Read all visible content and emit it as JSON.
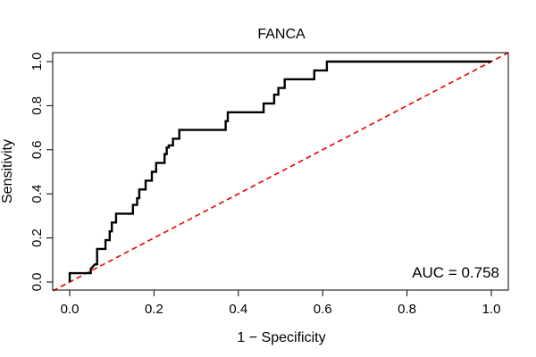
{
  "chart_data": {
    "type": "line",
    "title": "FANCA",
    "xlabel": "1 − Specificity",
    "ylabel": "Sensitivity",
    "xlim": [
      0,
      1
    ],
    "ylim": [
      0,
      1
    ],
    "xticks": [
      "0.0",
      "0.2",
      "0.4",
      "0.6",
      "0.8",
      "1.0"
    ],
    "yticks": [
      "0.0",
      "0.2",
      "0.4",
      "0.6",
      "0.8",
      "1.0"
    ],
    "annotation": "AUC = 0.758",
    "series": [
      {
        "name": "ROC curve",
        "color": "#000000",
        "style": "solid",
        "x": [
          0,
          0,
          0.05,
          0.05,
          0.06,
          0.065,
          0.065,
          0.085,
          0.085,
          0.095,
          0.095,
          0.1,
          0.1,
          0.11,
          0.11,
          0.15,
          0.15,
          0.16,
          0.16,
          0.165,
          0.165,
          0.18,
          0.18,
          0.195,
          0.195,
          0.2,
          0.2,
          0.205,
          0.205,
          0.225,
          0.225,
          0.23,
          0.23,
          0.235,
          0.235,
          0.245,
          0.245,
          0.26,
          0.26,
          0.275,
          0.275,
          0.37,
          0.37,
          0.375,
          0.375,
          0.46,
          0.46,
          0.485,
          0.485,
          0.495,
          0.495,
          0.51,
          0.51,
          0.515,
          0.515,
          0.58,
          0.58,
          0.61,
          0.61,
          1.0
        ],
        "y": [
          0,
          0.04,
          0.04,
          0.06,
          0.08,
          0.08,
          0.15,
          0.15,
          0.19,
          0.19,
          0.23,
          0.23,
          0.27,
          0.27,
          0.31,
          0.31,
          0.35,
          0.35,
          0.38,
          0.38,
          0.42,
          0.42,
          0.46,
          0.46,
          0.5,
          0.5,
          0.5,
          0.5,
          0.54,
          0.54,
          0.58,
          0.58,
          0.61,
          0.61,
          0.62,
          0.62,
          0.65,
          0.65,
          0.69,
          0.69,
          0.69,
          0.69,
          0.73,
          0.73,
          0.77,
          0.77,
          0.81,
          0.81,
          0.85,
          0.85,
          0.88,
          0.88,
          0.92,
          0.92,
          0.92,
          0.92,
          0.96,
          0.96,
          1.0,
          1.0
        ]
      },
      {
        "name": "Chance line",
        "color": "#ee0000",
        "style": "dashed",
        "x": [
          -0.04,
          1.04
        ],
        "y": [
          -0.04,
          1.04
        ]
      }
    ]
  }
}
